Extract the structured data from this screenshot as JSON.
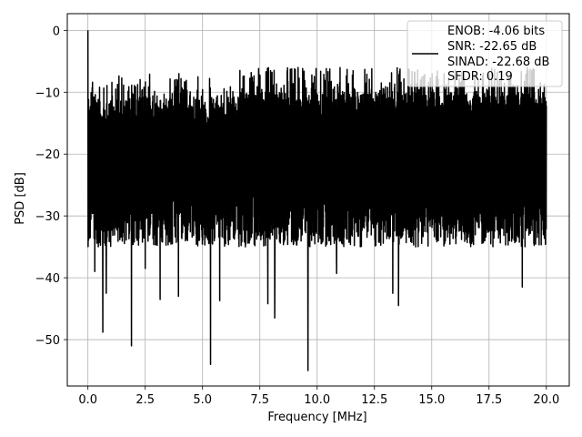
{
  "chart_data": {
    "type": "line",
    "title": "",
    "xlabel": "Frequency [MHz]",
    "ylabel": "PSD [dB]",
    "xlim": [
      -0.9,
      21.0
    ],
    "ylim": [
      -57.5,
      2.7
    ],
    "xticks": [
      0.0,
      2.5,
      5.0,
      7.5,
      10.0,
      12.5,
      15.0,
      17.5,
      20.0
    ],
    "xtick_labels": [
      "0.0",
      "2.5",
      "5.0",
      "7.5",
      "10.0",
      "12.5",
      "15.0",
      "17.5",
      "20.0"
    ],
    "yticks": [
      0,
      -10,
      -20,
      -30,
      -40,
      -50
    ],
    "ytick_labels": [
      "0",
      "−10",
      "−20",
      "−30",
      "−40",
      "−50"
    ],
    "grid": true,
    "legend_position": "top-right",
    "line_color": "#000000",
    "series": [
      {
        "name": "ENOB: -4.06 bits SNR: -22.65 dB SINAD: -22.68 dB SFDR: 0.19",
        "x_range": [
          0.0,
          20.0
        ],
        "description_points": [
          {
            "x": 0.0,
            "y": 0.0
          },
          {
            "x": 0.05,
            "y": -13.0
          },
          {
            "x": 0.1,
            "y": -33.5
          },
          {
            "x": 0.3,
            "y": -39.0
          },
          {
            "x": 0.65,
            "y": -48.8
          },
          {
            "x": 0.8,
            "y": -42.5
          },
          {
            "x": 1.9,
            "y": -51.0
          },
          {
            "x": 2.5,
            "y": -38.5
          },
          {
            "x": 3.15,
            "y": -43.5
          },
          {
            "x": 3.95,
            "y": -43.0
          },
          {
            "x": 5.35,
            "y": -54.0
          },
          {
            "x": 5.75,
            "y": -43.7
          },
          {
            "x": 7.85,
            "y": -44.2
          },
          {
            "x": 8.15,
            "y": -46.5
          },
          {
            "x": 9.6,
            "y": -55.0
          },
          {
            "x": 10.85,
            "y": -39.3
          },
          {
            "x": 13.3,
            "y": -42.5
          },
          {
            "x": 13.55,
            "y": -44.5
          },
          {
            "x": 18.95,
            "y": -41.5
          }
        ],
        "typical_band": [
          -30,
          -10
        ],
        "peak_max": -6.0
      }
    ]
  },
  "legend": {
    "lines": [
      "ENOB: -4.06 bits",
      "SNR: -22.65 dB",
      "SINAD: -22.68 dB",
      "SFDR: 0.19"
    ]
  }
}
